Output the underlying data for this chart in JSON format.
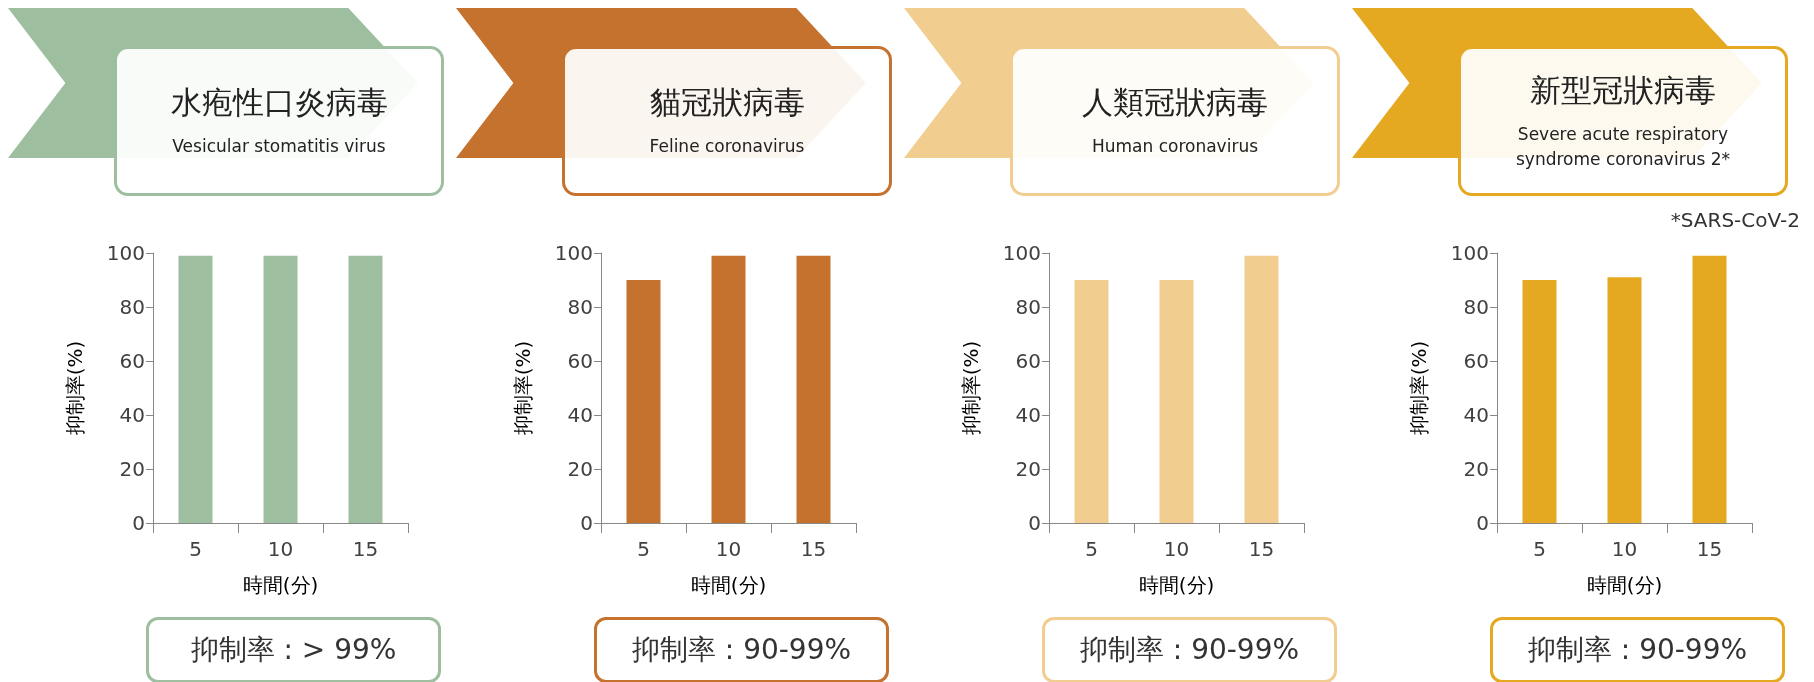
{
  "chart_data": [
    {
      "type": "bar",
      "title": "水疱性口炎病毒",
      "subtitle": "Vesicular stomatitis virus",
      "categories": [
        "5",
        "10",
        "15"
      ],
      "values": [
        99,
        99,
        99
      ],
      "color": "#9dbf9f",
      "xlabel": "時間(分)",
      "ylabel": "抑制率(%)",
      "ylim": [
        0,
        100
      ],
      "yticks": [
        0,
        20,
        40,
        60,
        80,
        100
      ],
      "grid": false,
      "annotations": [
        "抑制率 : > 99%"
      ]
    },
    {
      "type": "bar",
      "title": "貓冠狀病毒",
      "subtitle": "Feline coronavirus",
      "categories": [
        "5",
        "10",
        "15"
      ],
      "values": [
        90,
        99,
        99
      ],
      "color": "#c5722e",
      "xlabel": "時間(分)",
      "ylabel": "抑制率(%)",
      "ylim": [
        0,
        100
      ],
      "yticks": [
        0,
        20,
        40,
        60,
        80,
        100
      ],
      "grid": false,
      "annotations": [
        "抑制率 : 90-99%"
      ]
    },
    {
      "type": "bar",
      "title": "人類冠狀病毒",
      "subtitle": "Human coronavirus",
      "categories": [
        "5",
        "10",
        "15"
      ],
      "values": [
        90,
        90,
        99
      ],
      "color": "#f2cd90",
      "xlabel": "時間(分)",
      "ylabel": "抑制率(%)",
      "ylim": [
        0,
        100
      ],
      "yticks": [
        0,
        20,
        40,
        60,
        80,
        100
      ],
      "grid": false,
      "annotations": [
        "抑制率 : 90-99%"
      ]
    },
    {
      "type": "bar",
      "title": "新型冠狀病毒",
      "subtitle": "Severe acute respiratory syndrome  coronavirus 2*",
      "categories": [
        "5",
        "10",
        "15"
      ],
      "values": [
        90,
        91,
        99
      ],
      "color": "#e5a821",
      "xlabel": "時間(分)",
      "ylabel": "抑制率(%)",
      "ylim": [
        0,
        100
      ],
      "yticks": [
        0,
        20,
        40,
        60,
        80,
        100
      ],
      "grid": false,
      "annotations": [
        "抑制率 : 90-99%",
        "*SARS-CoV-2"
      ]
    }
  ]
}
